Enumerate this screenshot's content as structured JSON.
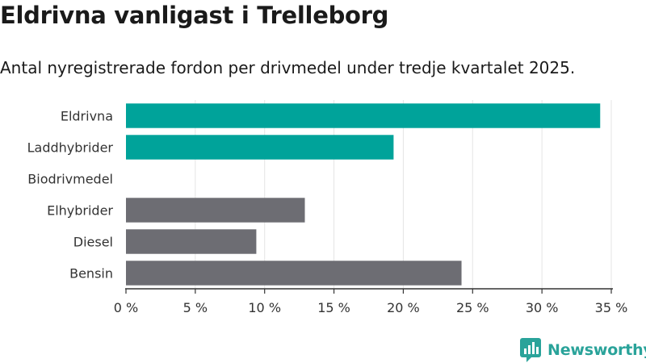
{
  "title": "Eldrivna vanligast i Trelleborg",
  "subtitle": "Antal nyregistrerade fordon per drivmedel under tredje kvartalet 2025.",
  "brand": "Newsworthy",
  "colors": {
    "teal": "#00a39a",
    "gray": "#6d6d73",
    "grid": "#e4e4e4",
    "axis": "#333333"
  },
  "chart_data": {
    "type": "bar",
    "orientation": "horizontal",
    "categories": [
      "Eldrivna",
      "Laddhybrider",
      "Biodrivmedel",
      "Elhybrider",
      "Diesel",
      "Bensin"
    ],
    "values": [
      34.2,
      19.3,
      0,
      12.9,
      9.4,
      24.2
    ],
    "bar_colors": [
      "teal",
      "teal",
      "teal",
      "gray",
      "gray",
      "gray"
    ],
    "xlim": [
      0,
      35
    ],
    "xticks": [
      0,
      5,
      10,
      15,
      20,
      25,
      30,
      35
    ],
    "tick_labels": [
      "0 %",
      "5 %",
      "10 %",
      "15 %",
      "20 %",
      "25 %",
      "30 %",
      "35 %"
    ],
    "xlabel": "",
    "ylabel": "",
    "grid": true
  }
}
